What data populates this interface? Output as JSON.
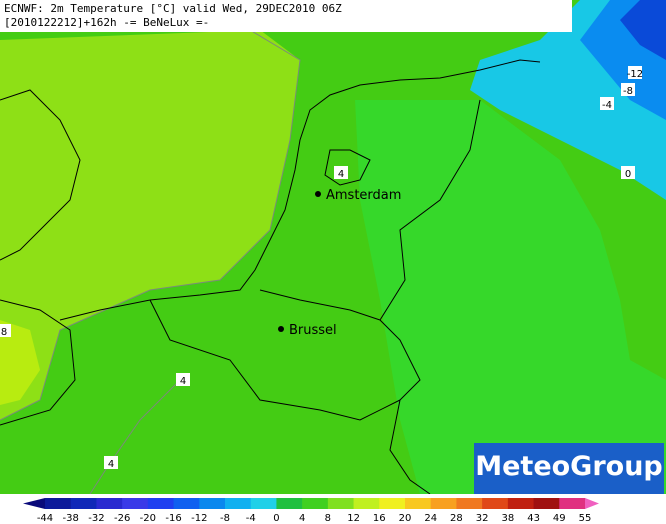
{
  "header": {
    "line1": "ECNWF: 2m Temperature [°C] valid Wed, 29DEC2010 06Z",
    "line2": "[2010122212]+162h -= BeNeLux =-"
  },
  "cities": [
    "Amsterdam",
    "Brussel"
  ],
  "contour_labels": [
    -12,
    -8,
    -4,
    0,
    4,
    4,
    4,
    8
  ],
  "logo": "MeteoGroup",
  "legend": {
    "ticks": [
      -44,
      -38,
      -32,
      -26,
      -20,
      -16,
      -12,
      -8,
      -4,
      0,
      4,
      8,
      12,
      16,
      20,
      24,
      28,
      32,
      38,
      43,
      49,
      55
    ],
    "colors": [
      "#0a0a7a",
      "#0d1a9a",
      "#1028b8",
      "#2a2ad0",
      "#3a3ae8",
      "#2040f0",
      "#1060f0",
      "#0a88ee",
      "#10b0f0",
      "#20d0e8",
      "#20c040",
      "#40d020",
      "#80e020",
      "#c0f020",
      "#f0f020",
      "#f8c820",
      "#f8a020",
      "#f07820",
      "#e04818",
      "#c02010",
      "#a01010",
      "#e03080",
      "#f060c0"
    ]
  }
}
